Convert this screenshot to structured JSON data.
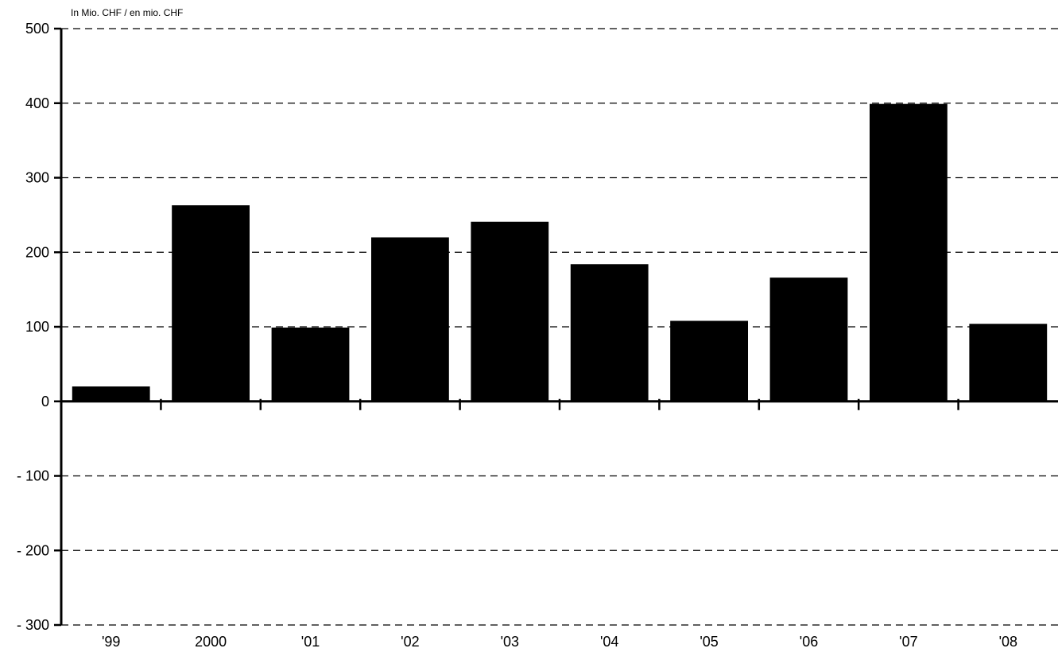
{
  "chart_data": {
    "type": "bar",
    "unit_label": "In Mio. CHF  / en mio. CHF",
    "categories": [
      "'99",
      "2000",
      "'01",
      "'02",
      "'03",
      "'04",
      "'05",
      "'06",
      "'07",
      "'08"
    ],
    "values": [
      20,
      263,
      99,
      220,
      241,
      184,
      108,
      166,
      399,
      104
    ],
    "y_ticks": [
      "500",
      "400",
      "300",
      "200",
      "100",
      "0",
      "- 100",
      "- 200",
      "- 300"
    ],
    "ylim": [
      -300,
      500
    ],
    "grid": true,
    "bar_color": "#000000"
  }
}
